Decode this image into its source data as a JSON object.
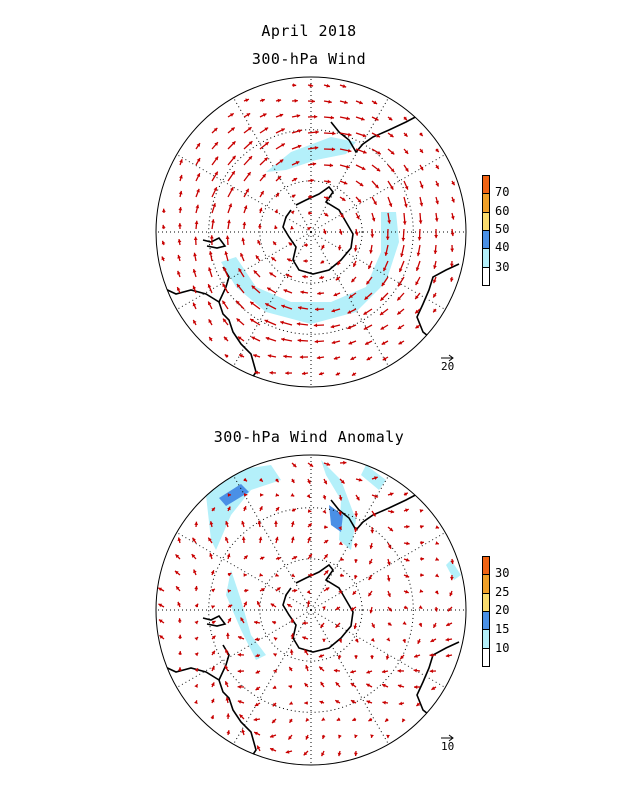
{
  "header": {
    "month_year": "April 2018",
    "top_title": "300-hPa Wind",
    "bottom_title": "300-hPa Wind Anomaly"
  },
  "top_panel": {
    "colorbar_labels": [
      "70",
      "60",
      "50",
      "40",
      "30"
    ],
    "colorbar_colors": [
      "#ffffff",
      "#b4f0fa",
      "#4a90e6",
      "#fadc6e",
      "#f0a028",
      "#f06414"
    ],
    "reference_vector": "20",
    "reference_vector_magnitude": 20
  },
  "bottom_panel": {
    "colorbar_labels": [
      "30",
      "25",
      "20",
      "15",
      "10"
    ],
    "colorbar_colors": [
      "#ffffff",
      "#b4f0fa",
      "#4a90e6",
      "#fadc6e",
      "#f0a028",
      "#f06414"
    ],
    "reference_vector": "10",
    "reference_vector_magnitude": 10
  },
  "colors": {
    "arrow": "#c80000",
    "coast": "#000000",
    "shade_light": "#b4f0fa",
    "shade_mid": "#4a90e6"
  }
}
